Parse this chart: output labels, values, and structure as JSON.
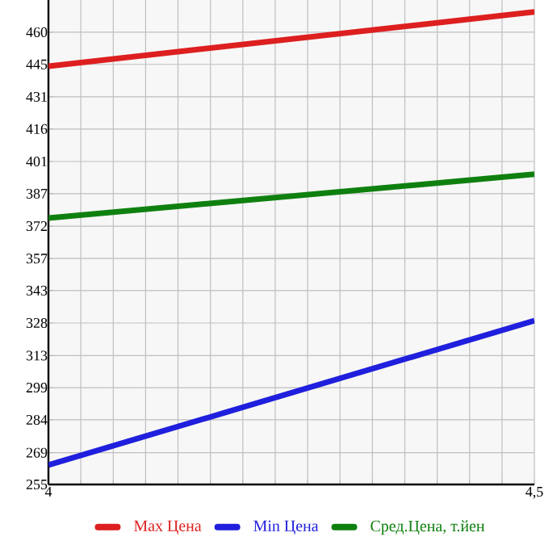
{
  "chart_data": {
    "type": "line",
    "x": [
      4,
      4.5
    ],
    "series": [
      {
        "name": "Max Цена",
        "color": "#dd1f1f",
        "values": [
          444.6,
          469.2
        ]
      },
      {
        "name": "Min Цена",
        "color": "#1f1fdd",
        "values": [
          263.8,
          329.3
        ]
      },
      {
        "name": "Сред.Цена, т.йен",
        "color": "#0f800f",
        "values": [
          375.8,
          395.6
        ]
      }
    ],
    "xlim": [
      4,
      4.5
    ],
    "xticks": [
      4,
      {
        "value": 4.0333,
        "label": null
      },
      {
        "value": 4.0667,
        "label": null
      },
      {
        "value": 4.1,
        "label": null
      },
      {
        "value": 4.1333,
        "label": null
      },
      {
        "value": 4.1667,
        "label": null
      },
      {
        "value": 4.2,
        "label": null
      },
      {
        "value": 4.2333,
        "label": null
      },
      {
        "value": 4.2667,
        "label": null
      },
      {
        "value": 4.3,
        "label": null
      },
      {
        "value": 4.3333,
        "label": null
      },
      {
        "value": 4.3667,
        "label": null
      },
      {
        "value": 4.4,
        "label": null
      },
      {
        "value": 4.4333,
        "label": null
      },
      {
        "value": 4.4667,
        "label": null
      },
      {
        "value": 4.5,
        "label": "4,5"
      }
    ],
    "ylim": [
      255,
      474.6
    ],
    "yticks": [
      255,
      {
        "value": 269.4,
        "label": "269"
      },
      {
        "value": 284.3,
        "label": "284"
      },
      {
        "value": 298.9,
        "label": "299"
      },
      {
        "value": 313.4,
        "label": "313"
      },
      {
        "value": 328.2,
        "label": "328"
      },
      {
        "value": 342.9,
        "label": "343"
      },
      {
        "value": 357.4,
        "label": "357"
      },
      {
        "value": 372.1,
        "label": "372"
      },
      {
        "value": 386.8,
        "label": "387"
      },
      {
        "value": 401.4,
        "label": "401"
      },
      {
        "value": 416.1,
        "label": "416"
      },
      {
        "value": 430.7,
        "label": "431"
      },
      {
        "value": 445.4,
        "label": "445"
      },
      460
    ],
    "grid": true,
    "legend": "bottom",
    "marker": "none",
    "line_style": "solid"
  }
}
